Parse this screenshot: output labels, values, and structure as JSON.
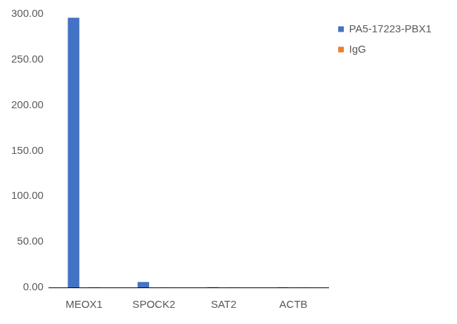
{
  "chart_data": {
    "type": "bar",
    "categories": [
      "MEOX1",
      "SPOCK2",
      "SAT2",
      "ACTB"
    ],
    "series": [
      {
        "name": "PA5-17223-PBX1",
        "color": "#4472c4",
        "values": [
          296,
          6,
          0.3,
          0.2
        ]
      },
      {
        "name": "IgG",
        "color": "#ed7d31",
        "values": [
          0.2,
          0.1,
          0.1,
          0.1
        ]
      }
    ],
    "ylim": [
      0,
      300
    ],
    "yticks": [
      {
        "value": 0,
        "label": "0.00"
      },
      {
        "value": 50,
        "label": "50.00"
      },
      {
        "value": 100,
        "label": "100.00"
      },
      {
        "value": 150,
        "label": "150.00"
      },
      {
        "value": 200,
        "label": "200.00"
      },
      {
        "value": 250,
        "label": "250.00"
      },
      {
        "value": 300,
        "label": "300.00"
      }
    ],
    "grid": false,
    "legend": "top-right"
  }
}
